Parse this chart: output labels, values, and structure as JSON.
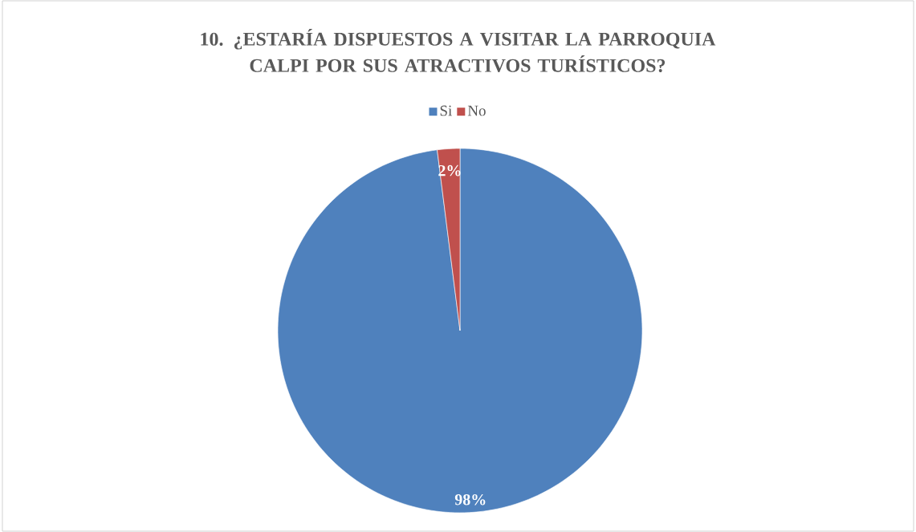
{
  "chart_data": {
    "type": "pie",
    "title": "10. ¿ESTARÍA DISPUESTOS A VISITAR LA PARROQUIA CALPI POR SUS ATRACTIVOS TURÍSTICOS?",
    "categories": [
      "Si",
      "No"
    ],
    "values": [
      98,
      2
    ],
    "colors": [
      "#4f81bd",
      "#c0504d"
    ],
    "value_labels": [
      "98%",
      "2%"
    ],
    "legend": "top"
  }
}
